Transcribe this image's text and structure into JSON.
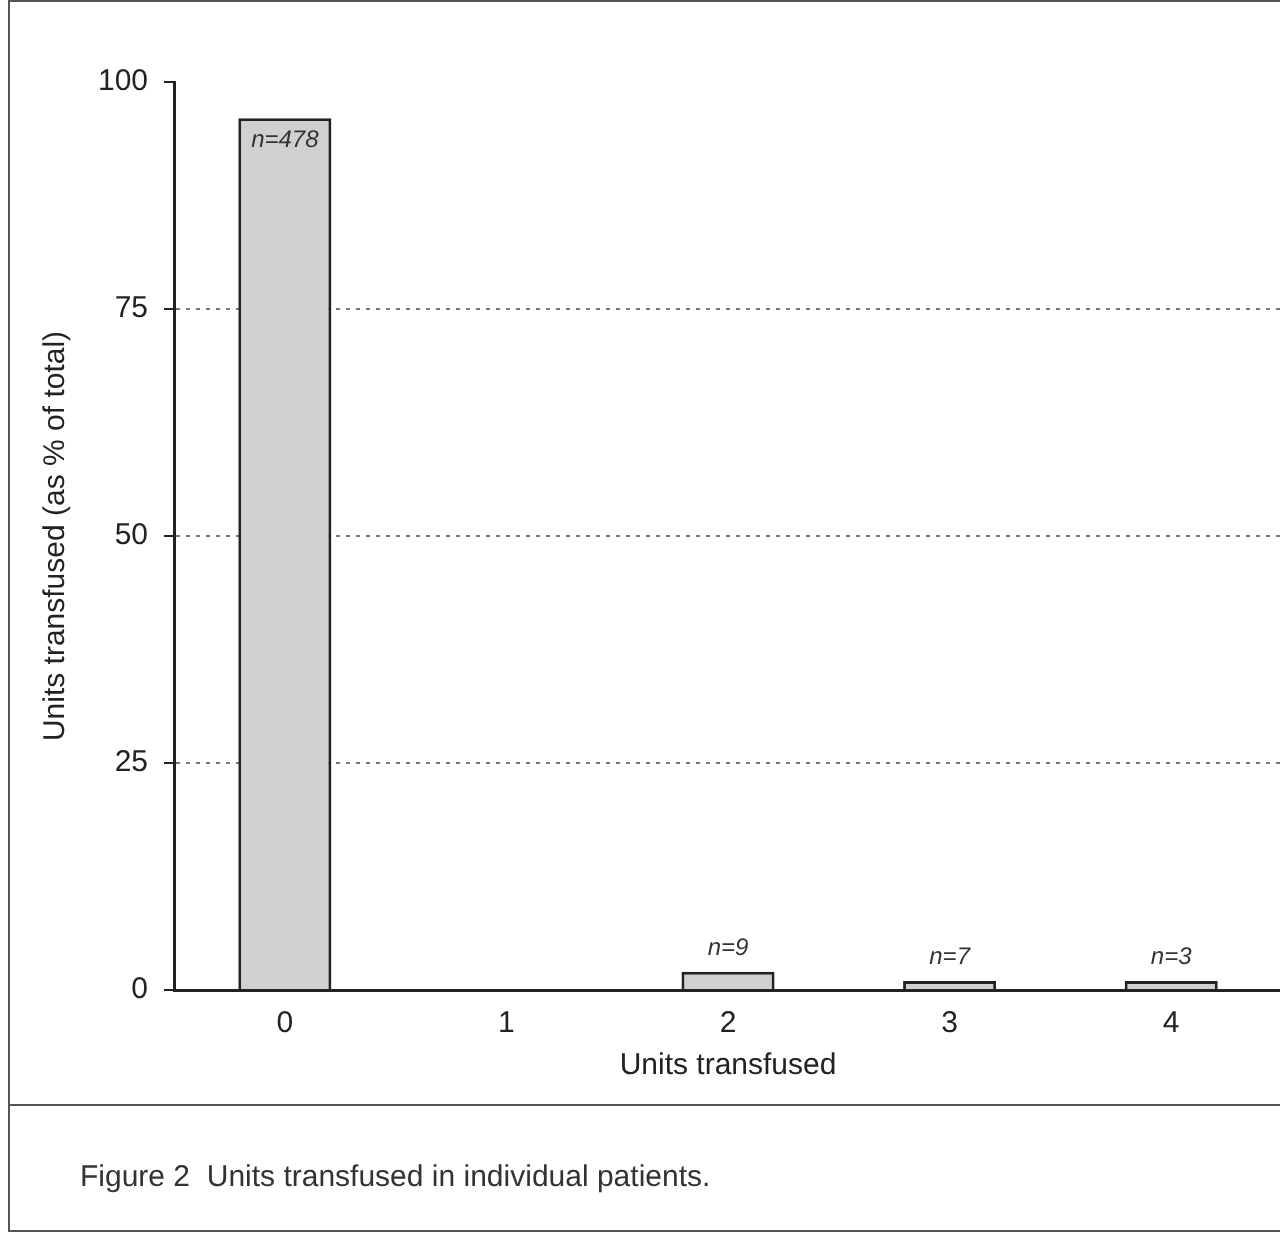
{
  "chart_data": {
    "type": "bar",
    "xlabel": "Units transfused",
    "ylabel": "Units transfused (as % of total)",
    "categories": [
      "0",
      "1",
      "2",
      "3",
      "4"
    ],
    "values": [
      96,
      0,
      2,
      1,
      1
    ],
    "color": "#d0d0d0",
    "ylim": [
      0,
      100
    ],
    "yticks": [
      0,
      25,
      50,
      75,
      100
    ],
    "grid": "y",
    "legend": false,
    "annotations": [
      {
        "text": "n=478",
        "x": "0",
        "y": 96
      },
      {
        "text": "n=9",
        "x": "2",
        "y": 2
      },
      {
        "text": "n=7",
        "x": "3",
        "y": 1
      },
      {
        "text": "n=3",
        "x": "4",
        "y": 1
      },
      "Figure 2  Units transfused in individual patients."
    ]
  }
}
